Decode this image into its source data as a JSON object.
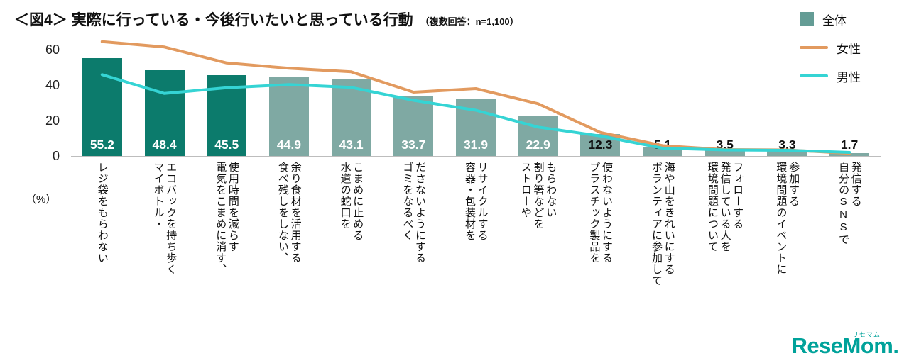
{
  "title": {
    "prefix": "＜図4＞",
    "main": "実際に行っている・今後行いたいと思っている行動",
    "note": "（複数回答：n=1,100）"
  },
  "legend": [
    {
      "label": "全体",
      "marker": "square",
      "color": "#649c95"
    },
    {
      "label": "女性",
      "marker": "line",
      "color": "#e29a5f"
    },
    {
      "label": "男性",
      "marker": "line",
      "color": "#35d4d4"
    }
  ],
  "axis": {
    "unit_label": "（%）"
  },
  "logo": {
    "text": "ReseMom",
    "ruby": "リセマム",
    "suffix": "."
  },
  "chart_data": {
    "type": "bar",
    "subtype": "bar-and-line-combo",
    "title": "実際に行っている・今後行いたいと思っている行動（複数回答：n=1,100）",
    "xlabel": "",
    "ylabel": "%",
    "ylim": [
      0,
      70
    ],
    "yticks": [
      0,
      20,
      40,
      60
    ],
    "grid": false,
    "legend_position": "top-right",
    "categories": [
      "レジ袋をもらわない",
      "マイボトル・\nエコバックを持ち歩く",
      "電気をこまめに消す、\n使用時間を減らす",
      "食べ残しをしない、\n余り食材を活用する",
      "水道の蛇口を\nこまめに止める",
      "ゴミをなるべく\nださないようにする",
      "容器・包装材を\nリサイクルする",
      "ストローや\n割り箸などを\nもらわない",
      "プラスチック製品を\n使わないようにする",
      "ボランティアに参加して\n海や山をきれいにする",
      "環境問題について\n発信している人を\nフォローする",
      "環境問題のイベントに\n参加する",
      "自分のSNSで\n発信する"
    ],
    "series": [
      {
        "name": "全体",
        "type": "bar",
        "values": [
          55.2,
          48.4,
          45.5,
          44.9,
          43.1,
          33.7,
          31.9,
          22.9,
          12.3,
          5.1,
          3.5,
          3.3,
          1.7
        ]
      },
      {
        "name": "女性",
        "type": "line",
        "color": "#e29a5f",
        "values": [
          64.5,
          61.5,
          52.5,
          49.5,
          47.5,
          36.0,
          38.0,
          29.5,
          13.3,
          5.8,
          3.6,
          3.4,
          1.5
        ]
      },
      {
        "name": "男性",
        "type": "line",
        "color": "#35d4d4",
        "values": [
          45.9,
          35.3,
          38.5,
          40.3,
          38.7,
          31.4,
          25.8,
          16.3,
          11.3,
          4.4,
          3.4,
          3.2,
          2.0
        ]
      }
    ],
    "bar_colors": {
      "highlight": "#0c7b6c",
      "normal": "#7fa9a3",
      "highlight_count": 3
    }
  }
}
